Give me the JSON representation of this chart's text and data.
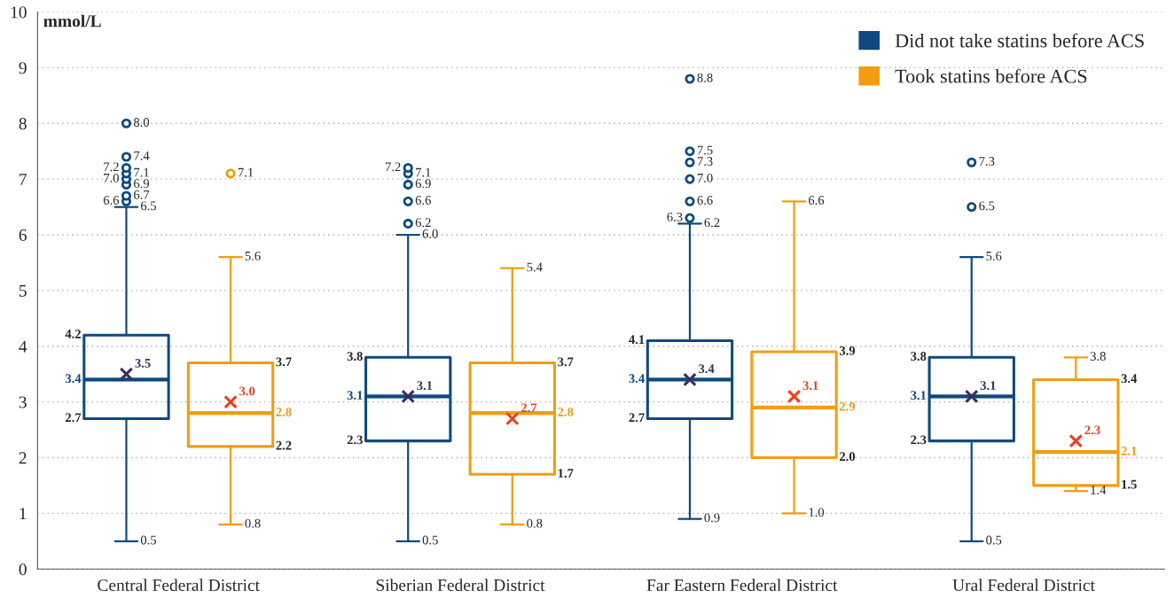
{
  "chart_data": {
    "type": "box",
    "ylabel": "mmol/L",
    "categories": [
      "Central Federal District",
      "Siberian Federal District",
      "Far Eastern Federal District",
      "Ural Federal District"
    ],
    "ylim": [
      0,
      10
    ],
    "yticks": [
      0,
      1,
      2,
      3,
      4,
      5,
      6,
      7,
      8,
      9,
      10
    ],
    "grid": "y",
    "legend": "top right",
    "annotations": [
      "2.7",
      "4.2",
      "3.4",
      "3.5",
      "0.5",
      "6.5",
      "6.6",
      "6.7",
      "6.9",
      "7.0",
      "7.1",
      "7.2",
      "7.4",
      "8.0",
      "2.3",
      "3.8",
      "3.1",
      "3.1",
      "0.5",
      "6.0",
      "6.2",
      "6.6",
      "6.9",
      "7.1",
      "7.2",
      "2.7",
      "4.1",
      "3.4",
      "3.4",
      "0.9",
      "6.2",
      "6.3",
      "6.6",
      "7.0",
      "7.3",
      "7.5",
      "8.8",
      "2.3",
      "3.8",
      "3.1",
      "3.1",
      "0.5",
      "5.6",
      "6.5",
      "7.3",
      "2.2",
      "3.7",
      "2.8",
      "3.0",
      "0.8",
      "5.6",
      "7.1",
      "1.7",
      "3.7",
      "2.8",
      "2.7",
      "0.8",
      "5.4",
      "2.0",
      "3.9",
      "2.9",
      "3.1",
      "1.0",
      "6.6",
      "1.5",
      "3.4",
      "2.1",
      "2.3",
      "1.4",
      "3.8"
    ],
    "series": [
      {
        "name": "Did not take statins before ACS",
        "color": "#0d4a80",
        "boxes": [
          {
            "low": 0.5,
            "q1": 2.7,
            "median": 3.4,
            "q3": 4.2,
            "high": 6.5,
            "mean": 3.5,
            "outliers": [
              6.6,
              6.7,
              6.9,
              7.0,
              7.1,
              7.2,
              7.4,
              8.0
            ]
          },
          {
            "low": 0.5,
            "q1": 2.3,
            "median": 3.1,
            "q3": 3.8,
            "high": 6.0,
            "mean": 3.1,
            "outliers": [
              6.2,
              6.6,
              6.9,
              7.1,
              7.2
            ]
          },
          {
            "low": 0.9,
            "q1": 2.7,
            "median": 3.4,
            "q3": 4.1,
            "high": 6.2,
            "mean": 3.4,
            "outliers": [
              6.3,
              6.6,
              7.0,
              7.3,
              7.5,
              8.8
            ]
          },
          {
            "low": 0.5,
            "q1": 2.3,
            "median": 3.1,
            "q3": 3.8,
            "high": 5.6,
            "mean": 3.1,
            "outliers": [
              6.5,
              7.3
            ]
          }
        ]
      },
      {
        "name": "Took statins before ACS",
        "color": "#f39c12",
        "boxes": [
          {
            "low": 0.8,
            "q1": 2.2,
            "median": 2.8,
            "q3": 3.7,
            "high": 5.6,
            "mean": 3.0,
            "outliers": [
              7.1
            ]
          },
          {
            "low": 0.8,
            "q1": 1.7,
            "median": 2.8,
            "q3": 3.7,
            "high": 5.4,
            "mean": 2.7
          },
          {
            "low": 1.0,
            "q1": 2.0,
            "median": 2.9,
            "q3": 3.9,
            "high": 6.6,
            "mean": 3.1
          },
          {
            "low": 1.4,
            "q1": 1.5,
            "median": 2.1,
            "q3": 3.4,
            "high": 3.8,
            "mean": 2.3
          }
        ]
      }
    ]
  }
}
